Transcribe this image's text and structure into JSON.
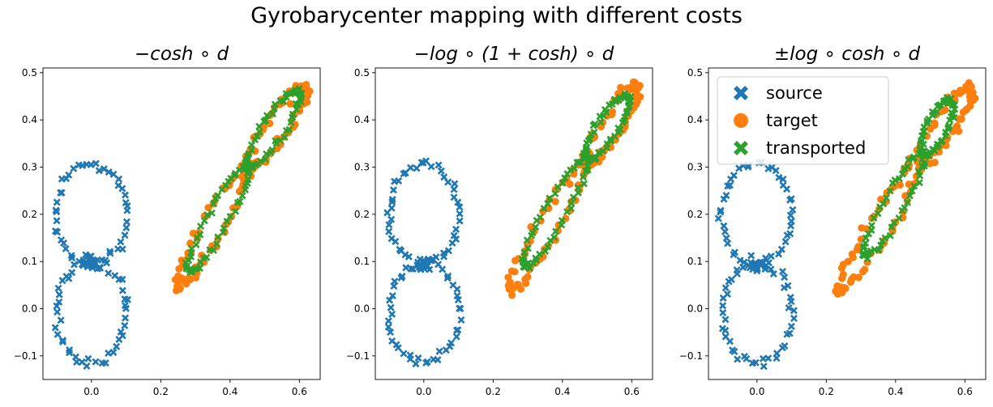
{
  "figure": {
    "title": "Gyrobarycenter mapping with different costs"
  },
  "colors": {
    "source": "#1f77b4",
    "target": "#ff7f0e",
    "transported": "#2ca02c"
  },
  "legend": {
    "placement": "upper-left of third panel",
    "entries": [
      {
        "label": "source",
        "marker": "x-icon",
        "color": "#1f77b4"
      },
      {
        "label": "target",
        "marker": "circle-icon",
        "color": "#ff7f0e"
      },
      {
        "label": "transported",
        "marker": "x-icon",
        "color": "#2ca02c"
      }
    ]
  },
  "chart_data": [
    {
      "type": "scatter",
      "title": "−cosh ∘ d",
      "xlim": [
        -0.14,
        0.66
      ],
      "ylim": [
        -0.15,
        0.51
      ],
      "xticks": [
        0.0,
        0.2,
        0.4,
        0.6
      ],
      "xtick_labels": [
        "0.0",
        "0.2",
        "0.4",
        "0.6"
      ],
      "yticks": [
        -0.1,
        0.0,
        0.1,
        0.2,
        0.3,
        0.4,
        0.5
      ],
      "ytick_labels": [
        "−0.1",
        "0.0",
        "0.1",
        "0.2",
        "0.3",
        "0.4",
        "0.5"
      ],
      "series": [
        {
          "name": "source",
          "shape": "figure-eight",
          "center": [
            0.0,
            0.095
          ],
          "x_range": [
            -0.12,
            0.12
          ],
          "y_range": [
            -0.12,
            0.3
          ]
        },
        {
          "name": "target",
          "shape": "tilted-figure-eight",
          "lower_end": [
            0.25,
            0.05
          ],
          "upper_end": [
            0.62,
            0.47
          ],
          "crossing": [
            0.45,
            0.3
          ]
        },
        {
          "name": "transported",
          "shape": "tilted-figure-eight",
          "lower_end": [
            0.28,
            0.08
          ],
          "upper_end": [
            0.6,
            0.46
          ],
          "crossing": [
            0.45,
            0.3
          ]
        }
      ]
    },
    {
      "type": "scatter",
      "title": "−log ∘ (1 + cosh) ∘ d",
      "xlim": [
        -0.14,
        0.66
      ],
      "ylim": [
        -0.15,
        0.51
      ],
      "xticks": [
        0.0,
        0.2,
        0.4,
        0.6
      ],
      "xtick_labels": [
        "0.0",
        "0.2",
        "0.4",
        "0.6"
      ],
      "yticks": [
        -0.1,
        0.0,
        0.1,
        0.2,
        0.3,
        0.4,
        0.5
      ],
      "ytick_labels": [
        "−0.1",
        "0.0",
        "0.1",
        "0.2",
        "0.3",
        "0.4",
        "0.5"
      ],
      "series": [
        {
          "name": "source",
          "shape": "figure-eight",
          "center": [
            0.0,
            0.095
          ],
          "x_range": [
            -0.12,
            0.12
          ],
          "y_range": [
            -0.12,
            0.3
          ]
        },
        {
          "name": "target",
          "shape": "tilted-figure-eight",
          "lower_end": [
            0.25,
            0.04
          ],
          "upper_end": [
            0.62,
            0.47
          ],
          "crossing": [
            0.47,
            0.31
          ]
        },
        {
          "name": "transported",
          "shape": "tilted-figure-eight",
          "lower_end": [
            0.29,
            0.09
          ],
          "upper_end": [
            0.59,
            0.45
          ],
          "crossing": [
            0.47,
            0.32
          ]
        }
      ]
    },
    {
      "type": "scatter",
      "title": "±log ∘ cosh ∘ d",
      "xlim": [
        -0.14,
        0.66
      ],
      "ylim": [
        -0.15,
        0.51
      ],
      "xticks": [
        0.0,
        0.2,
        0.4,
        0.6
      ],
      "xtick_labels": [
        "0.0",
        "0.2",
        "0.4",
        "0.6"
      ],
      "yticks": [
        -0.1,
        0.0,
        0.1,
        0.2,
        0.3,
        0.4,
        0.5
      ],
      "ytick_labels": [
        "−0.1",
        "0.0",
        "0.1",
        "0.2",
        "0.3",
        "0.4",
        "0.5"
      ],
      "series": [
        {
          "name": "source",
          "shape": "figure-eight",
          "center": [
            0.0,
            0.095
          ],
          "x_range": [
            -0.12,
            0.12
          ],
          "y_range": [
            -0.12,
            0.3
          ]
        },
        {
          "name": "target",
          "shape": "tilted-figure-eight",
          "lower_end": [
            0.24,
            0.04
          ],
          "upper_end": [
            0.62,
            0.47
          ],
          "crossing": [
            0.47,
            0.31
          ]
        },
        {
          "name": "transported",
          "shape": "tilted-figure-eight",
          "lower_end": [
            0.31,
            0.11
          ],
          "upper_end": [
            0.56,
            0.44
          ],
          "crossing": [
            0.48,
            0.33
          ]
        }
      ]
    }
  ]
}
